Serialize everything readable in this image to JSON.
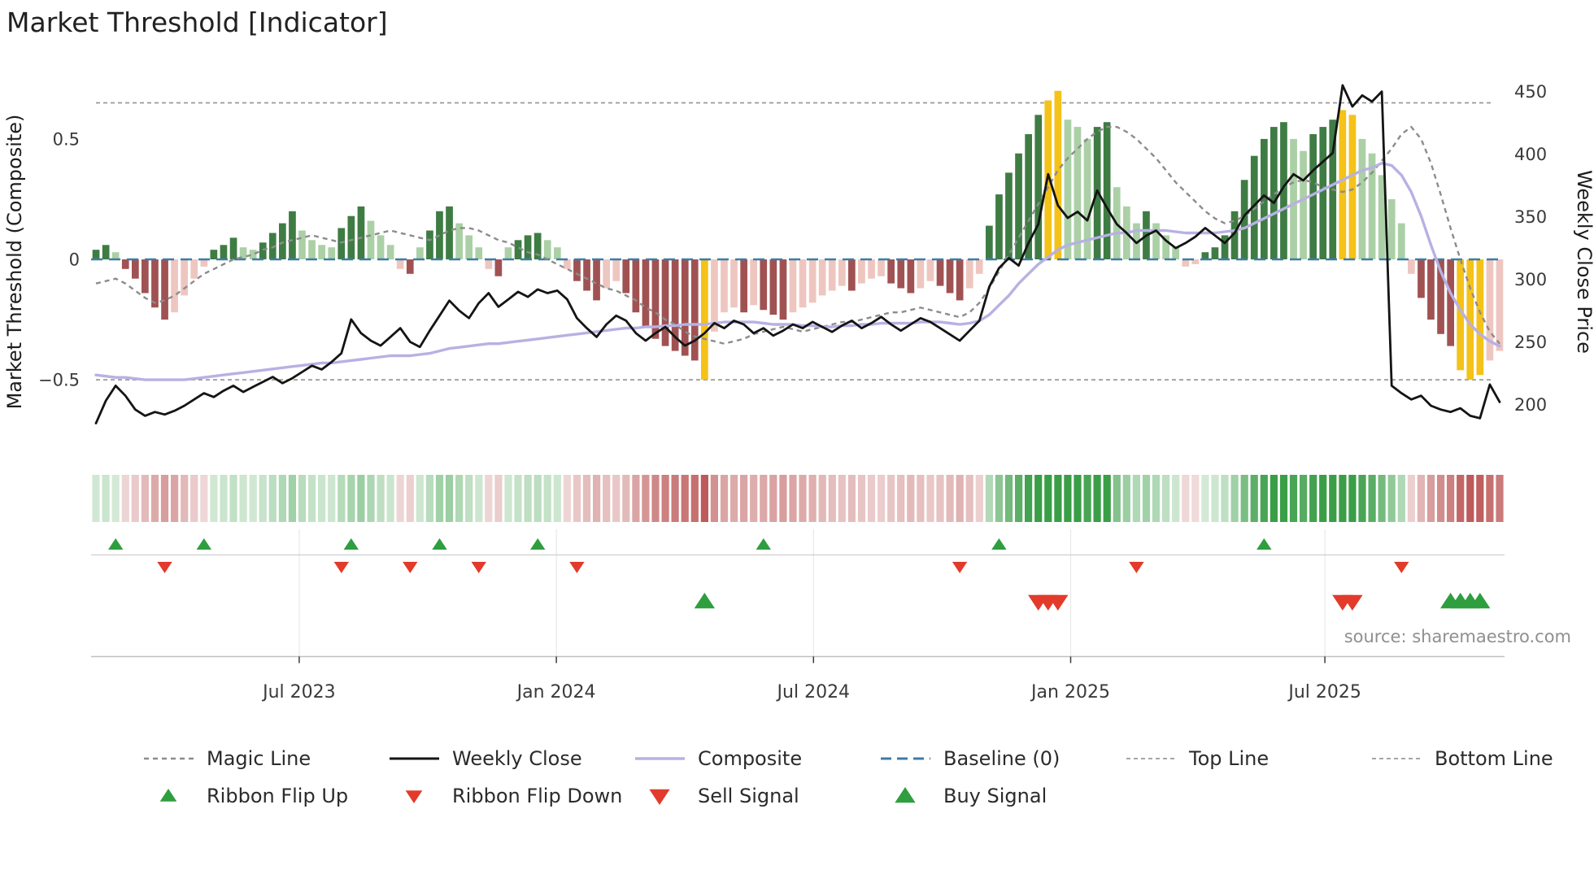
{
  "title": "Market Threshold [Indicator]",
  "source_credit": "source: sharemaestro.com",
  "colors": {
    "bar_green_dark": "#3e7c44",
    "bar_green_light": "#abd0a6",
    "bar_red_dark": "#a05252",
    "bar_red_light": "#eec6c0",
    "bar_gold": "#f4c218",
    "magic_line": "#8c8c8c",
    "composite_line": "#b7b1e3",
    "weekly_close_line": "#141414",
    "baseline": "#3d7ca6",
    "top_bottom_line": "#9a9a9a",
    "signal_green": "#2f9e3f",
    "signal_red": "#e23b2c",
    "ribbon_green": "#3a9e47",
    "ribbon_red": "#b84e4e",
    "grid_light": "#e8e8e8",
    "separator": "#cfcfcf",
    "axis_line": "#c0c0c0",
    "tick_mark": "#3a3a3a"
  },
  "chart_data": {
    "type": "combo",
    "frequency": "weekly",
    "n_points": 144,
    "x_ticks": [
      {
        "pos": 21.2,
        "label": "Jul 2023"
      },
      {
        "pos": 47.4,
        "label": "Jan 2024"
      },
      {
        "pos": 73.6,
        "label": "Jul 2024"
      },
      {
        "pos": 99.8,
        "label": "Jan 2025"
      },
      {
        "pos": 125.7,
        "label": "Jul 2025"
      }
    ],
    "left_axis": {
      "title": "Market Threshold (Composite)",
      "range": [
        -0.8,
        0.78
      ],
      "ticks": [
        {
          "v": 0.5,
          "label": "0.5"
        },
        {
          "v": 0,
          "label": "0"
        },
        {
          "v": -0.5,
          "label": "−0.5"
        }
      ]
    },
    "right_axis": {
      "title": "Weekly Close Price",
      "range": [
        162,
        466
      ],
      "ticks": [
        {
          "v": 450,
          "label": "450"
        },
        {
          "v": 400,
          "label": "400"
        },
        {
          "v": 350,
          "label": "350"
        },
        {
          "v": 300,
          "label": "300"
        },
        {
          "v": 250,
          "label": "250"
        },
        {
          "v": 200,
          "label": "200"
        }
      ]
    },
    "reference_lines": {
      "baseline": {
        "value": 0,
        "label": "Baseline (0)"
      },
      "top_line": {
        "value": 0.65,
        "label": "Top Line"
      },
      "bottom_line": {
        "value": -0.5,
        "label": "Bottom Line"
      }
    },
    "series": {
      "threshold_histogram": {
        "name": "Market Threshold Histogram",
        "type": "bar",
        "axis": "left",
        "highlight_weeks": [
          63,
          98,
          99,
          128,
          129,
          140,
          141,
          142
        ],
        "values": [
          0.04,
          0.06,
          0.03,
          -0.04,
          -0.08,
          -0.14,
          -0.2,
          -0.25,
          -0.22,
          -0.15,
          -0.08,
          -0.03,
          0.04,
          0.06,
          0.09,
          0.05,
          0.04,
          0.07,
          0.11,
          0.15,
          0.2,
          0.12,
          0.08,
          0.06,
          0.05,
          0.13,
          0.18,
          0.22,
          0.16,
          0.1,
          0.06,
          -0.04,
          -0.06,
          0.05,
          0.12,
          0.2,
          0.22,
          0.15,
          0.1,
          0.05,
          -0.04,
          -0.07,
          0.05,
          0.08,
          0.1,
          0.11,
          0.08,
          0.05,
          -0.04,
          -0.09,
          -0.13,
          -0.17,
          -0.12,
          -0.09,
          -0.14,
          -0.22,
          -0.28,
          -0.33,
          -0.36,
          -0.38,
          -0.4,
          -0.42,
          -0.5,
          -0.3,
          -0.22,
          -0.2,
          -0.22,
          -0.19,
          -0.21,
          -0.23,
          -0.25,
          -0.22,
          -0.2,
          -0.18,
          -0.15,
          -0.13,
          -0.11,
          -0.13,
          -0.1,
          -0.08,
          -0.07,
          -0.1,
          -0.12,
          -0.14,
          -0.12,
          -0.09,
          -0.11,
          -0.14,
          -0.17,
          -0.12,
          -0.06,
          0.14,
          0.27,
          0.36,
          0.44,
          0.52,
          0.6,
          0.66,
          0.7,
          0.58,
          0.55,
          0.5,
          0.55,
          0.57,
          0.3,
          0.22,
          0.15,
          0.2,
          0.15,
          0.1,
          0.05,
          -0.03,
          -0.02,
          0.03,
          0.05,
          0.1,
          0.2,
          0.33,
          0.43,
          0.5,
          0.55,
          0.57,
          0.5,
          0.45,
          0.52,
          0.55,
          0.58,
          0.62,
          0.6,
          0.5,
          0.44,
          0.35,
          0.25,
          0.15,
          -0.06,
          -0.16,
          -0.25,
          -0.31,
          -0.36,
          -0.46,
          -0.5,
          -0.48,
          -0.42,
          -0.38
        ]
      },
      "magic_line": {
        "name": "Magic Line",
        "type": "line",
        "dashed": true,
        "axis": "left",
        "values": [
          -0.1,
          -0.09,
          -0.08,
          -0.1,
          -0.13,
          -0.16,
          -0.18,
          -0.17,
          -0.15,
          -0.12,
          -0.09,
          -0.06,
          -0.04,
          -0.02,
          0.0,
          0.01,
          0.02,
          0.04,
          0.05,
          0.07,
          0.08,
          0.09,
          0.1,
          0.09,
          0.08,
          0.07,
          0.08,
          0.09,
          0.1,
          0.11,
          0.12,
          0.11,
          0.1,
          0.09,
          0.08,
          0.1,
          0.12,
          0.13,
          0.13,
          0.12,
          0.1,
          0.08,
          0.07,
          0.05,
          0.03,
          0.02,
          0.0,
          -0.02,
          -0.04,
          -0.06,
          -0.08,
          -0.1,
          -0.12,
          -0.13,
          -0.15,
          -0.17,
          -0.2,
          -0.22,
          -0.25,
          -0.27,
          -0.3,
          -0.32,
          -0.33,
          -0.34,
          -0.35,
          -0.34,
          -0.33,
          -0.31,
          -0.3,
          -0.29,
          -0.28,
          -0.29,
          -0.3,
          -0.29,
          -0.28,
          -0.27,
          -0.26,
          -0.26,
          -0.25,
          -0.24,
          -0.23,
          -0.22,
          -0.22,
          -0.21,
          -0.2,
          -0.21,
          -0.22,
          -0.23,
          -0.24,
          -0.22,
          -0.18,
          -0.12,
          -0.05,
          0.02,
          0.09,
          0.16,
          0.23,
          0.3,
          0.37,
          0.42,
          0.46,
          0.5,
          0.53,
          0.55,
          0.55,
          0.53,
          0.5,
          0.46,
          0.42,
          0.37,
          0.32,
          0.28,
          0.24,
          0.2,
          0.17,
          0.15,
          0.16,
          0.18,
          0.21,
          0.24,
          0.27,
          0.3,
          0.32,
          0.33,
          0.32,
          0.3,
          0.29,
          0.28,
          0.29,
          0.32,
          0.36,
          0.41,
          0.46,
          0.52,
          0.55,
          0.5,
          0.4,
          0.27,
          0.13,
          0.0,
          -0.12,
          -0.22,
          -0.3,
          -0.35
        ]
      },
      "composite": {
        "name": "Composite",
        "type": "line",
        "axis": "left",
        "values": [
          -0.48,
          -0.485,
          -0.49,
          -0.49,
          -0.495,
          -0.5,
          -0.5,
          -0.5,
          -0.5,
          -0.5,
          -0.495,
          -0.49,
          -0.485,
          -0.48,
          -0.475,
          -0.47,
          -0.465,
          -0.46,
          -0.455,
          -0.45,
          -0.445,
          -0.44,
          -0.435,
          -0.43,
          -0.43,
          -0.425,
          -0.42,
          -0.415,
          -0.41,
          -0.405,
          -0.4,
          -0.4,
          -0.4,
          -0.395,
          -0.39,
          -0.38,
          -0.37,
          -0.365,
          -0.36,
          -0.355,
          -0.35,
          -0.35,
          -0.345,
          -0.34,
          -0.335,
          -0.33,
          -0.325,
          -0.32,
          -0.315,
          -0.31,
          -0.305,
          -0.3,
          -0.295,
          -0.29,
          -0.285,
          -0.285,
          -0.28,
          -0.28,
          -0.275,
          -0.275,
          -0.27,
          -0.27,
          -0.27,
          -0.265,
          -0.26,
          -0.26,
          -0.26,
          -0.26,
          -0.265,
          -0.27,
          -0.27,
          -0.27,
          -0.275,
          -0.275,
          -0.28,
          -0.28,
          -0.275,
          -0.275,
          -0.27,
          -0.27,
          -0.265,
          -0.265,
          -0.265,
          -0.265,
          -0.26,
          -0.26,
          -0.26,
          -0.265,
          -0.27,
          -0.265,
          -0.255,
          -0.23,
          -0.19,
          -0.15,
          -0.1,
          -0.06,
          -0.02,
          0.01,
          0.04,
          0.06,
          0.07,
          0.08,
          0.09,
          0.1,
          0.11,
          0.11,
          0.12,
          0.12,
          0.12,
          0.12,
          0.115,
          0.11,
          0.11,
          0.11,
          0.11,
          0.115,
          0.12,
          0.13,
          0.15,
          0.17,
          0.19,
          0.21,
          0.23,
          0.25,
          0.27,
          0.29,
          0.31,
          0.33,
          0.35,
          0.37,
          0.38,
          0.4,
          0.39,
          0.35,
          0.28,
          0.18,
          0.06,
          -0.05,
          -0.14,
          -0.21,
          -0.27,
          -0.31,
          -0.34,
          -0.36
        ]
      },
      "weekly_close": {
        "name": "Weekly Close",
        "type": "line",
        "axis": "right",
        "values": [
          185,
          203,
          215,
          207,
          196,
          191,
          194,
          192,
          195,
          199,
          204,
          209,
          206,
          211,
          215,
          210,
          214,
          218,
          222,
          217,
          221,
          226,
          231,
          228,
          234,
          241,
          268,
          257,
          251,
          247,
          254,
          261,
          250,
          246,
          259,
          271,
          283,
          275,
          269,
          281,
          289,
          278,
          284,
          290,
          286,
          292,
          289,
          291,
          284,
          269,
          261,
          254,
          264,
          271,
          267,
          257,
          251,
          257,
          262,
          254,
          247,
          251,
          257,
          265,
          261,
          267,
          264,
          257,
          261,
          255,
          259,
          264,
          261,
          266,
          262,
          258,
          263,
          267,
          261,
          265,
          270,
          264,
          259,
          264,
          269,
          266,
          261,
          256,
          251,
          259,
          267,
          294,
          309,
          317,
          311,
          329,
          344,
          384,
          359,
          349,
          354,
          347,
          371,
          357,
          344,
          337,
          329,
          335,
          339,
          331,
          325,
          329,
          334,
          341,
          335,
          329,
          337,
          351,
          359,
          367,
          361,
          374,
          384,
          379,
          387,
          394,
          401,
          455,
          438,
          447,
          442,
          450,
          215,
          209,
          204,
          207,
          199,
          196,
          194,
          197,
          191,
          189,
          216,
          202
        ]
      }
    },
    "ribbon": {
      "name": "Threshold Ribbon",
      "derived_from": "threshold_histogram"
    },
    "signals": {
      "ribbon_flip_up_weeks": [
        3,
        12,
        27,
        36,
        46,
        69,
        93,
        120
      ],
      "ribbon_flip_down_weeks": [
        8,
        26,
        33,
        40,
        50,
        89,
        107,
        134
      ],
      "sell_signal_weeks": [
        97,
        98,
        99,
        128,
        129
      ],
      "buy_signal_weeks": [
        63,
        139,
        140,
        141,
        142
      ]
    }
  },
  "legend": {
    "items": [
      {
        "label": "Magic Line"
      },
      {
        "label": "Weekly Close"
      },
      {
        "label": "Composite"
      },
      {
        "label": "Baseline (0)"
      },
      {
        "label": "Top Line"
      },
      {
        "label": "Bottom Line"
      },
      {
        "label": "Ribbon Flip Up"
      },
      {
        "label": "Ribbon Flip Down"
      },
      {
        "label": "Sell Signal"
      },
      {
        "label": "Buy Signal"
      }
    ]
  }
}
